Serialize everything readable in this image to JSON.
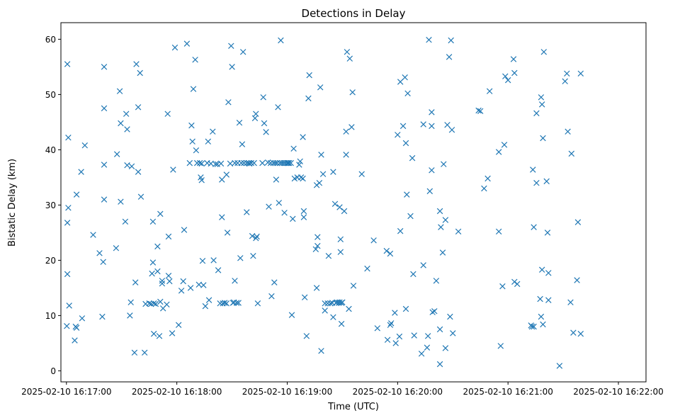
{
  "chart_data": {
    "type": "scatter",
    "marker": "x",
    "title": "Detections in Delay",
    "xlabel": "Time (UTC)",
    "ylabel": "Bistatic Delay (km)",
    "color": "#1f77b4",
    "xlim_seconds": [
      -3,
      315
    ],
    "ylim": [
      -2,
      63
    ],
    "x_origin": "2025-02-10 16:17:00",
    "xticks": [
      {
        "t": 0,
        "label": "2025-02-10 16:17:00"
      },
      {
        "t": 60,
        "label": "2025-02-10 16:18:00"
      },
      {
        "t": 120,
        "label": "2025-02-10 16:19:00"
      },
      {
        "t": 180,
        "label": "2025-02-10 16:20:00"
      },
      {
        "t": 240,
        "label": "2025-02-10 16:21:00"
      },
      {
        "t": 300,
        "label": "2025-02-10 16:22:00"
      }
    ],
    "yticks": [
      0,
      10,
      20,
      30,
      40,
      50,
      60
    ],
    "points_note": "x = seconds after 2025-02-10 16:17:00 UTC, y = bistatic delay in km",
    "points": [
      [
        0.5,
        55.5
      ],
      [
        1.0,
        42.2
      ],
      [
        0.5,
        17.5
      ],
      [
        1.0,
        29.5
      ],
      [
        0.5,
        26.8
      ],
      [
        1.5,
        11.8
      ],
      [
        0.2,
        8.1
      ],
      [
        5.5,
        31.9
      ],
      [
        5.0,
        8.0
      ],
      [
        5.5,
        7.8
      ],
      [
        4.5,
        5.5
      ],
      [
        8.0,
        36.0
      ],
      [
        10.0,
        40.8
      ],
      [
        8.5,
        9.5
      ],
      [
        14.5,
        24.6
      ],
      [
        18.0,
        21.3
      ],
      [
        20.0,
        19.7
      ],
      [
        19.5,
        9.8
      ],
      [
        20.5,
        31.0
      ],
      [
        20.5,
        47.5
      ],
      [
        20.5,
        55.0
      ],
      [
        20.5,
        37.3
      ],
      [
        27.0,
        22.2
      ],
      [
        27.5,
        39.2
      ],
      [
        29.0,
        50.6
      ],
      [
        29.5,
        44.8
      ],
      [
        29.5,
        30.6
      ],
      [
        32.0,
        27.0
      ],
      [
        32.5,
        46.5
      ],
      [
        33.0,
        43.7
      ],
      [
        33.0,
        37.2
      ],
      [
        35.5,
        37.0
      ],
      [
        35.0,
        12.4
      ],
      [
        34.5,
        10.0
      ],
      [
        37.0,
        3.3
      ],
      [
        37.5,
        16.0
      ],
      [
        38.0,
        55.5
      ],
      [
        39.0,
        47.7
      ],
      [
        39.0,
        36.0
      ],
      [
        40.0,
        53.9
      ],
      [
        40.5,
        31.5
      ],
      [
        42.5,
        3.3
      ],
      [
        43.0,
        12.1
      ],
      [
        45.0,
        12.2
      ],
      [
        46.0,
        12.1
      ],
      [
        47.5,
        12.2
      ],
      [
        48.5,
        12.1
      ],
      [
        47.0,
        27.0
      ],
      [
        46.5,
        17.6
      ],
      [
        47.0,
        19.6
      ],
      [
        47.5,
        6.7
      ],
      [
        49.5,
        22.5
      ],
      [
        49.5,
        18.0
      ],
      [
        51.0,
        12.5
      ],
      [
        50.5,
        6.3
      ],
      [
        51.0,
        28.4
      ],
      [
        52.0,
        16.3
      ],
      [
        52.0,
        15.8
      ],
      [
        52.5,
        11.3
      ],
      [
        54.5,
        12.0
      ],
      [
        55.0,
        46.5
      ],
      [
        55.5,
        24.3
      ],
      [
        55.5,
        17.2
      ],
      [
        56.0,
        16.2
      ],
      [
        57.5,
        6.8
      ],
      [
        58.0,
        36.4
      ],
      [
        59.0,
        58.5
      ],
      [
        61.0,
        8.3
      ],
      [
        62.5,
        14.5
      ],
      [
        63.5,
        16.2
      ],
      [
        64.0,
        25.5
      ],
      [
        65.5,
        59.2
      ],
      [
        67.0,
        37.6
      ],
      [
        67.5,
        15.0
      ],
      [
        68.0,
        44.4
      ],
      [
        68.5,
        41.5
      ],
      [
        69.0,
        51.0
      ],
      [
        70.0,
        56.3
      ],
      [
        70.5,
        39.9
      ],
      [
        71.0,
        37.6
      ],
      [
        72.5,
        37.6
      ],
      [
        73.5,
        37.5
      ],
      [
        72.0,
        15.6
      ],
      [
        73.0,
        35.0
      ],
      [
        73.5,
        34.5
      ],
      [
        74.0,
        19.9
      ],
      [
        74.5,
        15.5
      ],
      [
        75.5,
        11.7
      ],
      [
        76.5,
        37.6
      ],
      [
        77.0,
        41.5
      ],
      [
        77.5,
        12.8
      ],
      [
        78.5,
        37.5
      ],
      [
        79.5,
        43.3
      ],
      [
        80.0,
        20.0
      ],
      [
        81.0,
        37.4
      ],
      [
        82.0,
        37.4
      ],
      [
        82.5,
        18.2
      ],
      [
        83.5,
        12.2
      ],
      [
        84.0,
        37.5
      ],
      [
        84.5,
        34.6
      ],
      [
        84.5,
        27.8
      ],
      [
        85.0,
        12.2
      ],
      [
        86.0,
        12.3
      ],
      [
        87.0,
        35.5
      ],
      [
        87.0,
        12.2
      ],
      [
        87.5,
        25.0
      ],
      [
        88.0,
        48.6
      ],
      [
        89.0,
        37.5
      ],
      [
        89.5,
        58.8
      ],
      [
        90.0,
        55.0
      ],
      [
        90.5,
        12.3
      ],
      [
        91.0,
        12.4
      ],
      [
        91.5,
        16.3
      ],
      [
        91.5,
        37.6
      ],
      [
        92.5,
        12.3
      ],
      [
        93.0,
        37.6
      ],
      [
        93.5,
        12.3
      ],
      [
        94.0,
        44.9
      ],
      [
        94.5,
        20.4
      ],
      [
        95.0,
        37.6
      ],
      [
        95.5,
        41.0
      ],
      [
        96.0,
        57.7
      ],
      [
        96.5,
        37.6
      ],
      [
        98.0,
        37.6
      ],
      [
        98.0,
        28.7
      ],
      [
        99.0,
        37.6
      ],
      [
        99.5,
        37.5
      ],
      [
        100.5,
        37.6
      ],
      [
        101.0,
        24.4
      ],
      [
        101.5,
        20.8
      ],
      [
        102.0,
        37.6
      ],
      [
        102.5,
        45.7
      ],
      [
        103.0,
        46.5
      ],
      [
        103.0,
        24.0
      ],
      [
        103.5,
        24.3
      ],
      [
        104.0,
        12.2
      ],
      [
        106.5,
        37.6
      ],
      [
        107.0,
        49.5
      ],
      [
        107.5,
        44.8
      ],
      [
        108.5,
        43.2
      ],
      [
        109.5,
        37.7
      ],
      [
        110.0,
        29.7
      ],
      [
        111.0,
        37.6
      ],
      [
        111.5,
        13.5
      ],
      [
        112.5,
        37.6
      ],
      [
        113.0,
        16.0
      ],
      [
        113.5,
        37.6
      ],
      [
        114.0,
        34.6
      ],
      [
        114.5,
        37.6
      ],
      [
        115.0,
        47.7
      ],
      [
        115.5,
        30.4
      ],
      [
        116.0,
        37.6
      ],
      [
        116.5,
        59.8
      ],
      [
        117.0,
        37.6
      ],
      [
        118.0,
        37.6
      ],
      [
        118.5,
        28.6
      ],
      [
        119.0,
        37.6
      ],
      [
        120.0,
        37.6
      ],
      [
        120.5,
        37.6
      ],
      [
        121.0,
        37.6
      ],
      [
        122.0,
        37.6
      ],
      [
        122.5,
        10.1
      ],
      [
        123.0,
        27.5
      ],
      [
        123.5,
        40.2
      ],
      [
        124.0,
        34.8
      ],
      [
        125.5,
        35.0
      ],
      [
        126.5,
        37.3
      ],
      [
        127.0,
        37.9
      ],
      [
        127.5,
        35.0
      ],
      [
        128.5,
        42.3
      ],
      [
        128.5,
        34.8
      ],
      [
        129.0,
        28.9
      ],
      [
        129.0,
        27.8
      ],
      [
        129.5,
        13.3
      ],
      [
        130.5,
        6.3
      ],
      [
        131.5,
        49.3
      ],
      [
        132.0,
        53.5
      ],
      [
        136.0,
        15.0
      ],
      [
        135.5,
        22.0
      ],
      [
        136.5,
        24.2
      ],
      [
        136.5,
        22.6
      ],
      [
        136.0,
        33.6
      ],
      [
        137.5,
        34.0
      ],
      [
        138.0,
        51.3
      ],
      [
        138.5,
        39.1
      ],
      [
        138.5,
        3.6
      ],
      [
        139.5,
        35.6
      ],
      [
        140.5,
        12.2
      ],
      [
        140.5,
        10.9
      ],
      [
        142.0,
        12.2
      ],
      [
        142.5,
        20.8
      ],
      [
        143.5,
        12.2
      ],
      [
        144.5,
        12.3
      ],
      [
        145.0,
        36.0
      ],
      [
        145.0,
        9.7
      ],
      [
        146.0,
        30.2
      ],
      [
        146.5,
        12.3
      ],
      [
        147.0,
        12.4
      ],
      [
        148.0,
        12.3
      ],
      [
        148.5,
        12.4
      ],
      [
        149.0,
        23.8
      ],
      [
        148.5,
        29.6
      ],
      [
        149.0,
        21.5
      ],
      [
        149.5,
        8.5
      ],
      [
        149.5,
        12.3
      ],
      [
        150.0,
        12.4
      ],
      [
        151.0,
        28.9
      ],
      [
        152.0,
        39.1
      ],
      [
        152.0,
        43.3
      ],
      [
        152.5,
        57.7
      ],
      [
        153.5,
        11.2
      ],
      [
        154.0,
        56.5
      ],
      [
        155.0,
        44.1
      ],
      [
        155.5,
        50.4
      ],
      [
        156.0,
        15.4
      ],
      [
        160.5,
        35.6
      ],
      [
        163.5,
        18.5
      ],
      [
        167.0,
        23.6
      ],
      [
        169.0,
        7.7
      ],
      [
        174.0,
        21.7
      ],
      [
        174.5,
        5.6
      ],
      [
        176.0,
        21.2
      ],
      [
        176.0,
        8.3
      ],
      [
        176.5,
        8.6
      ],
      [
        178.5,
        10.5
      ],
      [
        179.0,
        5.0
      ],
      [
        181.0,
        6.2
      ],
      [
        180.0,
        42.7
      ],
      [
        181.5,
        52.3
      ],
      [
        181.5,
        25.3
      ],
      [
        183.0,
        44.3
      ],
      [
        184.0,
        53.1
      ],
      [
        184.5,
        41.2
      ],
      [
        184.5,
        11.2
      ],
      [
        185.0,
        31.9
      ],
      [
        185.5,
        50.2
      ],
      [
        187.0,
        28.0
      ],
      [
        188.0,
        38.5
      ],
      [
        188.5,
        17.5
      ],
      [
        189.0,
        6.4
      ],
      [
        193.0,
        3.1
      ],
      [
        194.0,
        44.6
      ],
      [
        194.0,
        19.1
      ],
      [
        196.0,
        4.2
      ],
      [
        196.5,
        6.3
      ],
      [
        197.0,
        59.9
      ],
      [
        197.5,
        32.5
      ],
      [
        198.5,
        46.8
      ],
      [
        198.5,
        44.3
      ],
      [
        198.5,
        36.3
      ],
      [
        199.0,
        10.6
      ],
      [
        200.0,
        10.8
      ],
      [
        201.0,
        16.3
      ],
      [
        203.0,
        1.2
      ],
      [
        203.0,
        7.5
      ],
      [
        203.0,
        28.9
      ],
      [
        203.5,
        26.0
      ],
      [
        204.5,
        21.4
      ],
      [
        205.0,
        37.4
      ],
      [
        206.0,
        27.3
      ],
      [
        206.0,
        4.1
      ],
      [
        207.0,
        44.5
      ],
      [
        208.0,
        56.8
      ],
      [
        208.5,
        9.8
      ],
      [
        209.0,
        59.8
      ],
      [
        209.5,
        43.6
      ],
      [
        210.0,
        6.8
      ],
      [
        213.0,
        25.2
      ],
      [
        224.0,
        47.1
      ],
      [
        225.0,
        47.0
      ],
      [
        227.0,
        33.0
      ],
      [
        229.0,
        34.8
      ],
      [
        230.0,
        50.6
      ],
      [
        235.0,
        39.6
      ],
      [
        235.0,
        25.2
      ],
      [
        236.0,
        4.5
      ],
      [
        237.0,
        15.3
      ],
      [
        238.0,
        40.9
      ],
      [
        238.5,
        53.3
      ],
      [
        240.0,
        52.6
      ],
      [
        243.0,
        56.4
      ],
      [
        243.5,
        16.1
      ],
      [
        243.5,
        53.9
      ],
      [
        245.0,
        15.7
      ],
      [
        252.5,
        8.2
      ],
      [
        253.0,
        8.0
      ],
      [
        253.5,
        36.4
      ],
      [
        254.0,
        26.0
      ],
      [
        254.0,
        8.0
      ],
      [
        255.5,
        46.6
      ],
      [
        255.5,
        34.0
      ],
      [
        257.5,
        13.0
      ],
      [
        258.0,
        9.8
      ],
      [
        258.0,
        49.5
      ],
      [
        258.5,
        48.2
      ],
      [
        258.5,
        18.3
      ],
      [
        259.0,
        42.1
      ],
      [
        259.5,
        57.7
      ],
      [
        259.0,
        8.4
      ],
      [
        261.0,
        34.3
      ],
      [
        261.5,
        25.0
      ],
      [
        262.0,
        12.8
      ],
      [
        262.0,
        17.7
      ],
      [
        268.0,
        0.9
      ],
      [
        271.0,
        52.4
      ],
      [
        272.0,
        53.8
      ],
      [
        272.5,
        43.3
      ],
      [
        274.0,
        12.4
      ],
      [
        274.5,
        39.3
      ],
      [
        275.5,
        6.9
      ],
      [
        277.5,
        16.4
      ],
      [
        278.0,
        26.9
      ],
      [
        279.5,
        6.7
      ],
      [
        279.5,
        53.8
      ]
    ]
  }
}
